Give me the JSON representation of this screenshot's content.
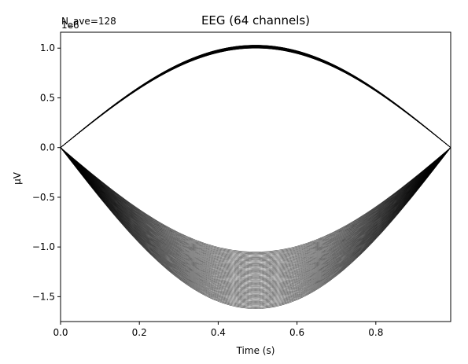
{
  "chart_data": {
    "type": "line",
    "title": "EEG (64 channels)",
    "xlabel": "Time (s)",
    "ylabel": "µV",
    "offset_text": "1e6",
    "annotation": "N_ave=128",
    "xlim": [
      0,
      0.99
    ],
    "ylim": [
      -1.75,
      1.16
    ],
    "y_scale_exponent": 6,
    "x_ticks": [
      0.0,
      0.2,
      0.4,
      0.6,
      0.8
    ],
    "x_tick_labels": [
      "0.0",
      "0.2",
      "0.4",
      "0.6",
      "0.8"
    ],
    "y_ticks": [
      1.0,
      0.5,
      0.0,
      -0.5,
      -1.0,
      -1.5
    ],
    "y_tick_labels": [
      "1.0",
      "0.5",
      "0.0",
      "−0.5",
      "−1.0",
      "−1.5"
    ],
    "grid": false,
    "line_color": "#000000",
    "signal": "sinusoid: y = A · sin(2π · 0.505 · t), t from 0 to 0.99 s",
    "series_groups": [
      {
        "label_shown": false,
        "amplitude_min": 1.0,
        "amplitude_max": 1.03,
        "peak_time": 0.5,
        "count": 64
      },
      {
        "label_shown": false,
        "amplitude_min": -1.05,
        "amplitude_max": -1.62,
        "peak_time": 0.5,
        "count": 64
      }
    ]
  }
}
